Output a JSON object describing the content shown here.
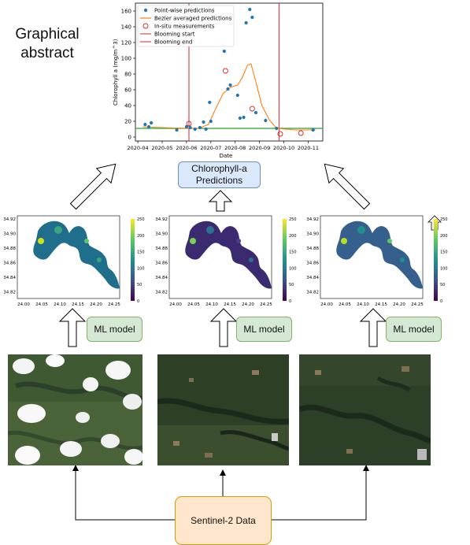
{
  "title": "Graphical abstract",
  "prediction_box": "Chlorophyll-a Predictions",
  "ml_box": "ML model",
  "sentinel_box": "Sentinel-2 Data",
  "chart_data": {
    "type": "scatter",
    "xlabel": "Date",
    "ylabel": "Chlorophyll a (mg/m^3)",
    "ylim": [
      0,
      170
    ],
    "yticks": [
      "0",
      "20",
      "40",
      "60",
      "80",
      "100",
      "120",
      "140",
      "160"
    ],
    "xticks": [
      "2020-04",
      "2020-05",
      "2020-06",
      "2020-07",
      "2020-08",
      "2020-09",
      "2020-10",
      "2020-11"
    ],
    "legend": [
      "Point-wise predictions",
      "Bezier averaged predictions",
      "In-situ measurements",
      "Blooming start",
      "Blooming end"
    ],
    "pointwise": [
      {
        "t": 0.3,
        "y": 16
      },
      {
        "t": 0.45,
        "y": 13
      },
      {
        "t": 0.55,
        "y": 18
      },
      {
        "t": 1.6,
        "y": 9
      },
      {
        "t": 2.0,
        "y": 13
      },
      {
        "t": 2.15,
        "y": 12
      },
      {
        "t": 2.35,
        "y": 10
      },
      {
        "t": 2.55,
        "y": 12
      },
      {
        "t": 2.7,
        "y": 19
      },
      {
        "t": 2.8,
        "y": 10
      },
      {
        "t": 2.95,
        "y": 44
      },
      {
        "t": 3.0,
        "y": 20
      },
      {
        "t": 3.55,
        "y": 109
      },
      {
        "t": 3.7,
        "y": 61
      },
      {
        "t": 3.8,
        "y": 66
      },
      {
        "t": 4.1,
        "y": 53
      },
      {
        "t": 4.2,
        "y": 24
      },
      {
        "t": 4.35,
        "y": 25
      },
      {
        "t": 4.45,
        "y": 145
      },
      {
        "t": 4.6,
        "y": 162
      },
      {
        "t": 4.7,
        "y": 152
      },
      {
        "t": 4.85,
        "y": 31
      },
      {
        "t": 5.25,
        "y": 21
      },
      {
        "t": 5.7,
        "y": 11
      },
      {
        "t": 7.2,
        "y": 9
      }
    ],
    "bezier": [
      {
        "t": 0.2,
        "y": 13
      },
      {
        "t": 1.0,
        "y": 12
      },
      {
        "t": 2.0,
        "y": 11
      },
      {
        "t": 2.5,
        "y": 11
      },
      {
        "t": 2.9,
        "y": 16
      },
      {
        "t": 3.2,
        "y": 36
      },
      {
        "t": 3.5,
        "y": 55
      },
      {
        "t": 3.8,
        "y": 63
      },
      {
        "t": 4.1,
        "y": 66
      },
      {
        "t": 4.3,
        "y": 76
      },
      {
        "t": 4.5,
        "y": 91
      },
      {
        "t": 4.65,
        "y": 93
      },
      {
        "t": 4.85,
        "y": 70
      },
      {
        "t": 5.1,
        "y": 40
      },
      {
        "t": 5.4,
        "y": 22
      },
      {
        "t": 5.7,
        "y": 11
      },
      {
        "t": 6.5,
        "y": 9
      },
      {
        "t": 7.3,
        "y": 9
      }
    ],
    "insitu": [
      {
        "t": 2.1,
        "y": 17
      },
      {
        "t": 3.6,
        "y": 84
      },
      {
        "t": 4.7,
        "y": 36
      },
      {
        "t": 5.85,
        "y": 4
      },
      {
        "t": 6.7,
        "y": 5
      }
    ],
    "blooming_start_t": 2.1,
    "blooming_end_t": 5.8,
    "threshold_y": 11
  },
  "maps": {
    "yticks": [
      "34.92",
      "34.90",
      "34.88",
      "34.86",
      "34.84",
      "34.82"
    ],
    "xticks": [
      "24.00",
      "24.05",
      "24.10",
      "24.15",
      "24.20",
      "24.25"
    ],
    "cbar_ticks": [
      "250",
      "200",
      "150",
      "100",
      "50",
      "0"
    ]
  },
  "colors": {
    "scatter": "#1f77b4",
    "bezier": "#ff7f0e",
    "blooming": "#d62728",
    "threshold": "#2ca02c"
  }
}
